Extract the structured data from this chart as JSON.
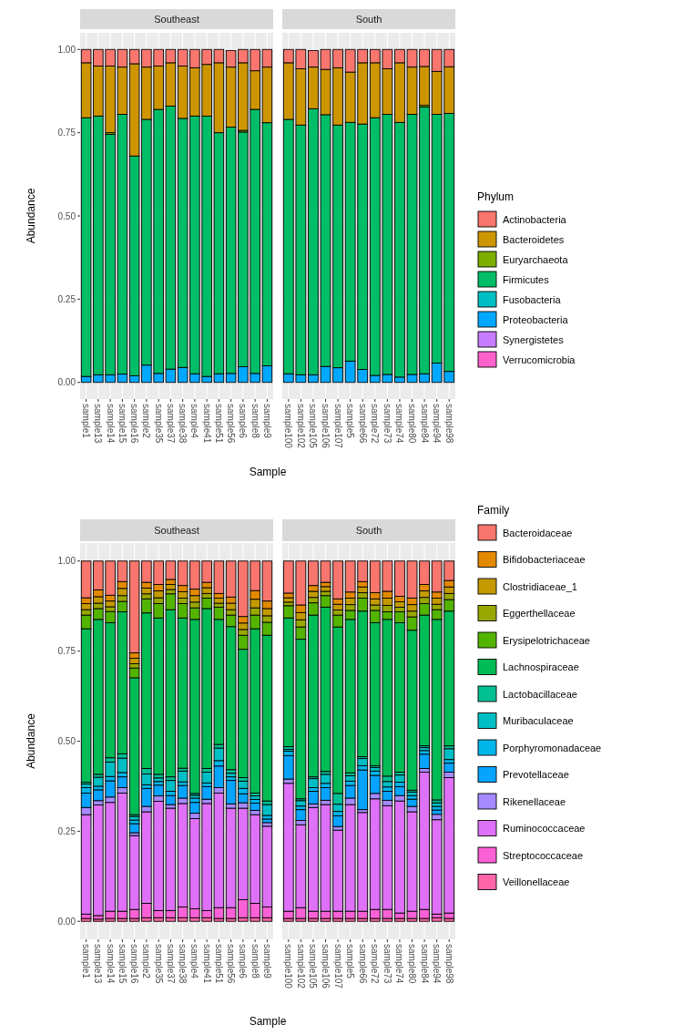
{
  "chart_data": [
    {
      "type": "bar",
      "stacked": true,
      "title": "Southeast",
      "xlabel": "Sample",
      "ylabel": "Abundance",
      "grid": true,
      "legend": false,
      "categories": [
        "sample1",
        "sample13",
        "sample14",
        "sample15",
        "sample16",
        "sample2",
        "sample35",
        "sample37",
        "sample38",
        "sample4",
        "sample41",
        "sample51",
        "sample56",
        "sample6",
        "sample8",
        "sample9"
      ],
      "ylim": [
        -0.05,
        1.05
      ],
      "yticks": [
        {
          "value": 0,
          "label": "0.00"
        },
        {
          "value": 0.25,
          "label": "0.25"
        },
        {
          "value": 0.5,
          "label": "0.50"
        },
        {
          "value": 0.75,
          "label": "0.75"
        },
        {
          "value": 1,
          "label": "1.00"
        }
      ],
      "series": [
        {
          "color": "#ff61cc",
          "values": [
            0,
            0,
            0,
            0,
            0,
            0,
            0,
            0,
            0,
            0,
            0,
            0,
            null,
            0,
            0,
            0
          ]
        },
        {
          "color": "#c77cff",
          "values": [
            0,
            0,
            0,
            0,
            0,
            0,
            0,
            0,
            0,
            0,
            0,
            0,
            0,
            0,
            0,
            0
          ]
        },
        {
          "color": "#00a9ff",
          "values": [
            0.018,
            0.023,
            0.023,
            0.025,
            0.02,
            0.052,
            0.027,
            0.04,
            0.045,
            0.026,
            0.018,
            0.026,
            0.027,
            0.047,
            0.027,
            0.05
          ]
        },
        {
          "color": "#00bfc4",
          "values": [
            0,
            0,
            0,
            0,
            0,
            0,
            0,
            0,
            0,
            0,
            0,
            0,
            0,
            0,
            0,
            0
          ]
        },
        {
          "color": "#00be67",
          "values": [
            0.777,
            0.777,
            0.722,
            0.78,
            0.66,
            0.738,
            0.793,
            0.79,
            0.748,
            0.774,
            0.782,
            0.724,
            0.74,
            0.705,
            0.793,
            0.73
          ]
        },
        {
          "color": "#7cae00",
          "values": [
            0,
            0,
            0.005,
            0,
            0,
            0,
            0,
            0,
            0,
            0,
            0,
            0,
            0,
            0.005,
            0,
            0
          ]
        },
        {
          "color": "#cd9600",
          "values": [
            0.165,
            0.15,
            0.2,
            0.142,
            0.277,
            0.157,
            0.13,
            0.13,
            0.157,
            0.145,
            0.155,
            0.21,
            0.18,
            0.203,
            0.116,
            0.167
          ]
        },
        {
          "color": "#f8766d",
          "values": [
            0.04,
            0.05,
            0.05,
            0.053,
            0.043,
            0.053,
            0.05,
            0.04,
            0.05,
            0.055,
            0.045,
            0.04,
            0.05,
            0.04,
            0.064,
            0.053
          ]
        }
      ]
    },
    {
      "type": "bar",
      "stacked": true,
      "title": "South",
      "legend_title": "Phylum",
      "legend": "right",
      "grid": true,
      "tick_labels": "x",
      "categories": [
        "sample100",
        "sample102",
        "sample105",
        "sample106",
        "sample107",
        "sample5",
        "sample66",
        "sample72",
        "sample73",
        "sample74",
        "sample80",
        "sample84",
        "sample94",
        "sample98"
      ],
      "ylim": [
        -0.05,
        1.05
      ],
      "yticks": [
        {
          "value": 0,
          "label": null
        },
        {
          "value": 0.25,
          "label": null
        },
        {
          "value": 0.5,
          "label": null
        },
        {
          "value": 0.75,
          "label": null
        },
        {
          "value": 1,
          "label": null
        }
      ],
      "series": [
        {
          "name": "Verrucomicrobia",
          "color": "#ff61cc",
          "values": [
            0,
            0,
            null,
            0,
            0,
            0,
            0,
            0,
            0,
            0,
            0,
            0,
            0,
            0
          ]
        },
        {
          "name": "Synergistetes",
          "color": "#c77cff",
          "values": [
            0,
            0,
            0,
            0,
            0,
            0,
            0,
            0,
            0,
            0,
            0,
            0,
            0,
            0
          ]
        },
        {
          "name": "Proteobacteria",
          "color": "#00a9ff",
          "values": [
            0.026,
            0.023,
            0.023,
            0.048,
            0.044,
            0.064,
            0.039,
            0.021,
            0.024,
            0.016,
            0.024,
            0.026,
            0.058,
            0.033
          ]
        },
        {
          "name": "Fusobacteria",
          "color": "#00bfc4",
          "values": [
            0,
            0,
            0,
            0,
            0,
            0,
            0,
            0,
            0,
            0,
            0,
            0,
            0,
            0
          ]
        },
        {
          "name": "Firmicutes",
          "color": "#00be67",
          "values": [
            0.764,
            0.75,
            0.799,
            0.756,
            0.729,
            0.717,
            0.737,
            0.774,
            0.781,
            0.765,
            0.781,
            0.801,
            0.747,
            0.775
          ]
        },
        {
          "name": "Euryarchaeota",
          "color": "#7cae00",
          "values": [
            0,
            0,
            0,
            0,
            0,
            0,
            0,
            0,
            0,
            0,
            0,
            0.005,
            0,
            0
          ]
        },
        {
          "name": "Bacteroidetes",
          "color": "#cd9600",
          "values": [
            0.17,
            0.169,
            0.125,
            0.136,
            0.172,
            0.151,
            0.184,
            0.165,
            0.137,
            0.179,
            0.142,
            0.117,
            0.129,
            0.14
          ]
        },
        {
          "name": "Actinobacteria",
          "color": "#f8766d",
          "values": [
            0.04,
            0.058,
            0.05,
            0.06,
            0.055,
            0.068,
            0.04,
            0.04,
            0.058,
            0.04,
            0.053,
            0.051,
            0.066,
            0.052
          ]
        }
      ]
    },
    {
      "type": "bar",
      "stacked": true,
      "title": "Southeast",
      "xlabel": "Sample",
      "ylabel": "Abundance",
      "grid": true,
      "legend": false,
      "categories": [
        "sample1",
        "sample13",
        "sample14",
        "sample15",
        "sample16",
        "sample2",
        "sample35",
        "sample37",
        "sample38",
        "sample4",
        "sample41",
        "sample51",
        "sample56",
        "sample6",
        "sample8",
        "sample9"
      ],
      "ylim": [
        -0.05,
        1.05
      ],
      "yticks": [
        {
          "value": 0,
          "label": "0.00"
        },
        {
          "value": 0.25,
          "label": "0.25"
        },
        {
          "value": 0.5,
          "label": "0.50"
        },
        {
          "value": 0.75,
          "label": "0.75"
        },
        {
          "value": 1,
          "label": "1.00"
        }
      ],
      "series": [
        {
          "color": "#ff66a8",
          "values": [
            0.008,
            0.006,
            0.008,
            0.008,
            0.008,
            0.01,
            0.01,
            0.01,
            0.01,
            0.01,
            0.01,
            0.008,
            0.008,
            0.01,
            0.01,
            0.01
          ]
        },
        {
          "color": "#fb61d7",
          "values": [
            0.012,
            0.01,
            0.02,
            0.02,
            0.025,
            0.04,
            0.02,
            0.02,
            0.03,
            0.025,
            0.02,
            0.03,
            0.03,
            0.05,
            0.04,
            0.03
          ]
        },
        {
          "color": "#df70f8",
          "values": [
            0.276,
            0.307,
            0.302,
            0.328,
            0.205,
            0.254,
            0.303,
            0.284,
            0.287,
            0.25,
            0.297,
            0.318,
            0.276,
            0.254,
            0.246,
            0.224
          ]
        },
        {
          "color": "#a58aff",
          "values": [
            0.02,
            0.012,
            0.015,
            0.015,
            0.008,
            0.015,
            0.015,
            0.01,
            0.015,
            0.015,
            0.012,
            0.015,
            0.012,
            0.015,
            0.012,
            0.01
          ]
        },
        {
          "color": "#06a4ff",
          "values": [
            0.04,
            0.03,
            0.045,
            0.03,
            0.025,
            0.05,
            0.03,
            0.025,
            0.035,
            0.03,
            0.035,
            0.06,
            0.065,
            0.025,
            0.02,
            0.01
          ]
        },
        {
          "color": "#00b6eb",
          "values": [
            0.015,
            0.01,
            0.012,
            0.012,
            0.01,
            0.01,
            0.01,
            0.012,
            0.01,
            0.012,
            0.01,
            0.015,
            0.01,
            0.015,
            0.01,
            0.01
          ]
        },
        {
          "color": "#00bfc4",
          "values": [
            0.01,
            0.025,
            0.04,
            0.04,
            0.01,
            0.03,
            0.01,
            0.03,
            0.03,
            0.008,
            0.03,
            0.035,
            0.01,
            0.02,
            0.01,
            0.03
          ]
        },
        {
          "color": "#00c094",
          "values": [
            0.005,
            0.008,
            0.012,
            0.012,
            0.005,
            0.015,
            0.01,
            0.01,
            0.008,
            0.005,
            0.01,
            0.01,
            0.01,
            0.01,
            0.008,
            0.01
          ]
        },
        {
          "color": "#00bc56",
          "values": [
            0.426,
            0.43,
            0.375,
            0.394,
            0.38,
            0.432,
            0.434,
            0.464,
            0.417,
            0.483,
            0.444,
            0.347,
            0.397,
            0.356,
            0.456,
            0.46
          ]
        },
        {
          "color": "#53b400",
          "values": [
            0.038,
            0.03,
            0.031,
            0.029,
            0.027,
            0.039,
            0.04,
            0.044,
            0.04,
            0.032,
            0.029,
            0.034,
            0.032,
            0.039,
            0.038,
            0.036
          ]
        },
        {
          "color": "#99a800",
          "values": [
            0.015,
            0.015,
            0.013,
            0.016,
            0.012,
            0.014,
            0.016,
            0.012,
            0.015,
            0.016,
            0.013,
            0.011,
            0.015,
            0.016,
            0.02,
            0.018
          ]
        },
        {
          "color": "#c49a00",
          "values": [
            0.017,
            0.018,
            0.016,
            0.02,
            0.015,
            0.016,
            0.019,
            0.014,
            0.018,
            0.018,
            0.016,
            0.014,
            0.018,
            0.018,
            0.024,
            0.02
          ]
        },
        {
          "color": "#e38900",
          "values": [
            0.016,
            0.019,
            0.016,
            0.019,
            0.015,
            0.016,
            0.018,
            0.014,
            0.017,
            0.018,
            0.015,
            0.013,
            0.017,
            0.018,
            0.024,
            0.021
          ]
        },
        {
          "color": "#f8766d",
          "values": [
            0.102,
            0.08,
            0.095,
            0.057,
            0.255,
            0.059,
            0.065,
            0.051,
            0.068,
            0.078,
            0.059,
            0.09,
            0.1,
            0.154,
            0.082,
            0.111
          ]
        }
      ]
    },
    {
      "type": "bar",
      "stacked": true,
      "title": "South",
      "legend_title": "Family",
      "legend": "right",
      "grid": true,
      "tick_labels": "x",
      "categories": [
        "sample100",
        "sample102",
        "sample105",
        "sample106",
        "sample107",
        "sample5",
        "sample66",
        "sample72",
        "sample73",
        "sample74",
        "sample80",
        "sample84",
        "sample94",
        "sample98"
      ],
      "ylim": [
        -0.05,
        1.05
      ],
      "yticks": [
        {
          "value": 0,
          "label": null
        },
        {
          "value": 0.25,
          "label": null
        },
        {
          "value": 0.5,
          "label": null
        },
        {
          "value": 0.75,
          "label": null
        },
        {
          "value": 1,
          "label": null
        }
      ],
      "series": [
        {
          "name": "Veillonellaceae",
          "color": "#ff66a8",
          "values": [
            0.008,
            0.008,
            0.008,
            0.008,
            0.008,
            0.008,
            0.008,
            0.008,
            0.008,
            0.008,
            0.008,
            0.008,
            0.01,
            0.008
          ]
        },
        {
          "name": "Streptococcaceae",
          "color": "#fb61d7",
          "values": [
            0.02,
            0.03,
            0.02,
            0.02,
            0.02,
            0.02,
            0.02,
            0.025,
            0.025,
            0.015,
            0.02,
            0.025,
            0.01,
            0.015
          ]
        },
        {
          "name": "Ruminococcaceae",
          "color": "#df70f8",
          "values": [
            0.355,
            0.23,
            0.288,
            0.296,
            0.225,
            0.296,
            0.274,
            0.307,
            0.288,
            0.311,
            0.276,
            0.381,
            0.262,
            0.376
          ]
        },
        {
          "name": "Rikenellaceae",
          "color": "#a58aff",
          "values": [
            0.012,
            0.012,
            0.01,
            0.012,
            0.01,
            0.018,
            0.008,
            0.015,
            0.015,
            0.015,
            0.015,
            0.01,
            0.015,
            0.015
          ]
        },
        {
          "name": "Prevotellaceae",
          "color": "#06a4ff",
          "values": [
            0.065,
            0.03,
            0.035,
            0.035,
            0.03,
            0.035,
            0.11,
            0.05,
            0.025,
            0.025,
            0.02,
            0.04,
            0.012,
            0.025
          ]
        },
        {
          "name": "Porphyromonadaceae",
          "color": "#00b6eb",
          "values": [
            0.012,
            0.01,
            0.01,
            0.012,
            0.012,
            0.012,
            0.012,
            0.012,
            0.012,
            0.012,
            0.01,
            0.01,
            0.01,
            0.01
          ]
        },
        {
          "name": "Muribaculaceae",
          "color": "#00bfc4",
          "values": [
            0.005,
            0.015,
            0.025,
            0.025,
            0.02,
            0.015,
            0.02,
            0.01,
            0.015,
            0.02,
            0.01,
            0.008,
            0.01,
            0.03
          ]
        },
        {
          "name": "Lactobacillaceae",
          "color": "#00c094",
          "values": [
            0.008,
            0.005,
            0.005,
            0.008,
            0.03,
            0.008,
            0.005,
            0.005,
            0.015,
            0.008,
            0.005,
            0.005,
            0.008,
            0.008
          ]
        },
        {
          "name": "Lachnospiraceae",
          "color": "#00bc56",
          "values": [
            0.357,
            0.443,
            0.449,
            0.456,
            0.462,
            0.426,
            0.404,
            0.397,
            0.435,
            0.415,
            0.444,
            0.363,
            0.501,
            0.374
          ]
        },
        {
          "name": "Erysipelotrichaceae",
          "color": "#53b400",
          "values": [
            0.034,
            0.034,
            0.034,
            0.032,
            0.033,
            0.025,
            0.036,
            0.034,
            0.021,
            0.03,
            0.037,
            0.032,
            0.027,
            0.032
          ]
        },
        {
          "name": "Eggerthellaceae",
          "color": "#99a800",
          "values": [
            0.01,
            0.02,
            0.015,
            0.012,
            0.014,
            0.016,
            0.015,
            0.015,
            0.018,
            0.013,
            0.016,
            0.017,
            0.015,
            0.017
          ]
        },
        {
          "name": "Clostridiaceae_1",
          "color": "#c49a00",
          "values": [
            0.012,
            0.02,
            0.017,
            0.013,
            0.016,
            0.018,
            0.016,
            0.017,
            0.02,
            0.015,
            0.018,
            0.018,
            0.017,
            0.018
          ]
        },
        {
          "name": "Bifidobacteriaceae",
          "color": "#e38900",
          "values": [
            0.013,
            0.021,
            0.016,
            0.012,
            0.015,
            0.017,
            0.015,
            0.017,
            0.019,
            0.015,
            0.018,
            0.018,
            0.017,
            0.018
          ]
        },
        {
          "name": "Bacteroidaceae",
          "color": "#f8766d",
          "values": [
            0.089,
            0.122,
            0.068,
            0.059,
            0.105,
            0.086,
            0.057,
            0.088,
            0.084,
            0.098,
            0.103,
            0.065,
            0.086,
            0.054
          ]
        }
      ]
    }
  ]
}
